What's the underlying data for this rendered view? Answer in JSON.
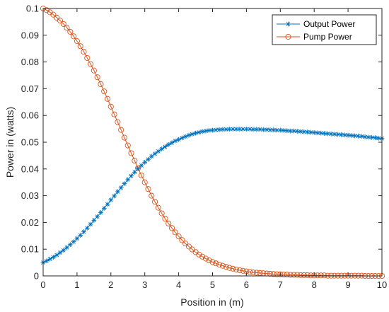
{
  "chart_data": {
    "type": "line",
    "xlabel": "Position in (m)",
    "ylabel": "Power in (watts)",
    "xlim": [
      0,
      10
    ],
    "ylim": [
      0,
      0.1
    ],
    "xticks": [
      "0",
      "1",
      "2",
      "3",
      "4",
      "5",
      "6",
      "7",
      "8",
      "9",
      "10"
    ],
    "yticks": [
      "0",
      "0.01",
      "0.02",
      "0.03",
      "0.04",
      "0.05",
      "0.06",
      "0.07",
      "0.08",
      "0.09",
      "0.1"
    ],
    "grid": false,
    "legend": "top-right",
    "x": [
      0,
      0.1,
      0.2,
      0.3,
      0.4,
      0.5,
      0.6,
      0.7,
      0.8,
      0.9,
      1.0,
      1.1,
      1.2,
      1.3,
      1.4,
      1.5,
      1.6,
      1.7,
      1.8,
      1.9,
      2.0,
      2.1,
      2.2,
      2.3,
      2.4,
      2.5,
      2.6,
      2.7,
      2.8,
      2.9,
      3.0,
      3.1,
      3.2,
      3.3,
      3.4,
      3.5,
      3.6,
      3.7,
      3.8,
      3.9,
      4.0,
      4.1,
      4.2,
      4.3,
      4.4,
      4.5,
      4.6,
      4.7,
      4.8,
      4.9,
      5.0,
      5.1,
      5.2,
      5.3,
      5.4,
      5.5,
      5.6,
      5.7,
      5.8,
      5.9,
      6.0,
      6.1,
      6.2,
      6.3,
      6.4,
      6.5,
      6.6,
      6.7,
      6.8,
      6.9,
      7.0,
      7.1,
      7.2,
      7.3,
      7.4,
      7.5,
      7.6,
      7.7,
      7.8,
      7.9,
      8.0,
      8.1,
      8.2,
      8.3,
      8.4,
      8.5,
      8.6,
      8.7,
      8.8,
      8.9,
      9.0,
      9.1,
      9.2,
      9.3,
      9.4,
      9.5,
      9.6,
      9.7,
      9.8,
      9.9,
      10.0
    ],
    "series": [
      {
        "name": "Output Power",
        "color": "#0072BD",
        "marker": "asterisk",
        "values": [
          0.005,
          0.0056,
          0.0063,
          0.007,
          0.0078,
          0.0087,
          0.0096,
          0.0106,
          0.0117,
          0.0128,
          0.014,
          0.0152,
          0.0165,
          0.0179,
          0.0193,
          0.0208,
          0.0222,
          0.0237,
          0.0253,
          0.0268,
          0.0284,
          0.0299,
          0.0315,
          0.033,
          0.0345,
          0.036,
          0.0374,
          0.0388,
          0.0401,
          0.0413,
          0.0425,
          0.0436,
          0.0447,
          0.0457,
          0.0466,
          0.0475,
          0.0483,
          0.0491,
          0.0498,
          0.0505,
          0.051,
          0.0516,
          0.0521,
          0.0526,
          0.053,
          0.0534,
          0.0537,
          0.054,
          0.0542,
          0.0544,
          0.0545,
          0.0546,
          0.0547,
          0.0548,
          0.0548,
          0.0549,
          0.0549,
          0.0549,
          0.0549,
          0.0549,
          0.0549,
          0.0549,
          0.0548,
          0.0548,
          0.0548,
          0.0547,
          0.0547,
          0.0546,
          0.0546,
          0.0545,
          0.0545,
          0.0544,
          0.0543,
          0.0542,
          0.0542,
          0.0541,
          0.054,
          0.0539,
          0.0538,
          0.0537,
          0.0536,
          0.0535,
          0.0534,
          0.0533,
          0.0532,
          0.0531,
          0.053,
          0.0529,
          0.0528,
          0.0527,
          0.0526,
          0.0525,
          0.0524,
          0.0523,
          0.0522,
          0.052,
          0.0519,
          0.0518,
          0.0517,
          0.0515,
          0.0514
        ]
      },
      {
        "name": "Pump Power",
        "color": "#D95319",
        "marker": "circle",
        "values": [
          0.1,
          0.0994,
          0.0986,
          0.0977,
          0.0966,
          0.0955,
          0.0942,
          0.0928,
          0.0913,
          0.0896,
          0.0878,
          0.0859,
          0.0838,
          0.0815,
          0.0792,
          0.0768,
          0.0743,
          0.0717,
          0.069,
          0.0662,
          0.0633,
          0.0604,
          0.0575,
          0.0546,
          0.0517,
          0.0488,
          0.0459,
          0.0431,
          0.0403,
          0.0376,
          0.035,
          0.0325,
          0.03,
          0.0277,
          0.0255,
          0.0234,
          0.0214,
          0.0196,
          0.0179,
          0.0163,
          0.0148,
          0.0134,
          0.0121,
          0.011,
          0.0099,
          0.0089,
          0.008,
          0.0072,
          0.0065,
          0.0058,
          0.0052,
          0.0047,
          0.0042,
          0.0038,
          0.0034,
          0.003,
          0.0027,
          0.0024,
          0.0021,
          0.0019,
          0.0017,
          0.0015,
          0.0013,
          0.0012,
          0.0011,
          0.001,
          0.0009,
          0.0008,
          0.0007,
          0.0006,
          0.0006,
          0.0005,
          0.0005,
          0.0004,
          0.0004,
          0.0004,
          0.0003,
          0.0003,
          0.0003,
          0.0002,
          0.0002,
          0.0002,
          0.0002,
          0.0002,
          0.0001,
          0.0001,
          0.0001,
          0.0001,
          0.0001,
          0.0001,
          0.0001,
          0.0001,
          0.0001,
          0.0001,
          0.0001,
          0.0,
          0.0,
          0.0,
          0.0,
          0.0,
          0.0
        ]
      }
    ]
  }
}
